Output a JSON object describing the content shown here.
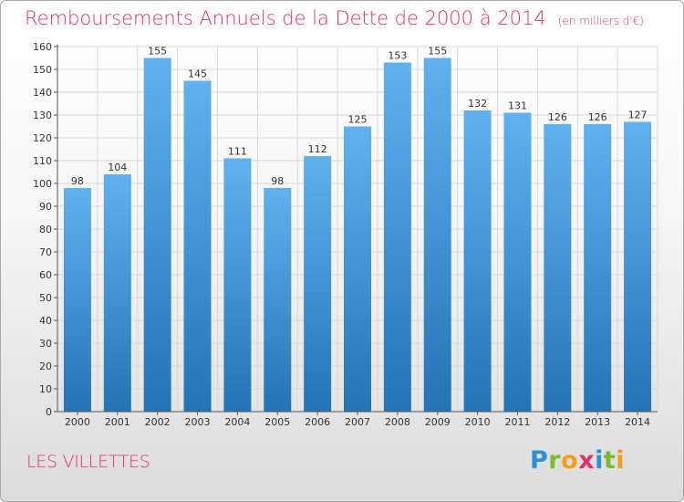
{
  "title": "Remboursements Annuels de la Dette de 2000 à 2014",
  "unit_label": "(en milliers d'€)",
  "commune": "LES VILLETTES",
  "brand": {
    "text": "Proxiti",
    "letters": [
      {
        "ch": "P",
        "color": "#2e8fd6"
      },
      {
        "ch": "r",
        "color": "#7db928"
      },
      {
        "ch": "o",
        "color": "#f0a01e"
      },
      {
        "ch": "x",
        "color": "#e0316a"
      },
      {
        "ch": "i",
        "color": "#2e8fd6"
      },
      {
        "ch": "t",
        "color": "#7db928"
      },
      {
        "ch": "i",
        "color": "#f0a01e"
      }
    ]
  },
  "colors": {
    "bar_top": "#5fb2ee",
    "bar_bottom": "#2374b4",
    "title": "#e0316a",
    "grid": "#d9d9d9",
    "axis": "#555555"
  },
  "chart_data": {
    "type": "bar",
    "title": "Remboursements Annuels de la Dette de 2000 à 2014",
    "categories": [
      "2000",
      "2001",
      "2002",
      "2003",
      "2004",
      "2005",
      "2006",
      "2007",
      "2008",
      "2009",
      "2010",
      "2011",
      "2012",
      "2013",
      "2014"
    ],
    "values": [
      98,
      104,
      155,
      145,
      111,
      98,
      112,
      125,
      153,
      155,
      132,
      131,
      126,
      126,
      127
    ],
    "ylim": [
      0,
      160
    ],
    "yticks": [
      0,
      10,
      20,
      30,
      40,
      50,
      60,
      70,
      80,
      90,
      100,
      110,
      120,
      130,
      140,
      150,
      160
    ],
    "grid": true
  }
}
